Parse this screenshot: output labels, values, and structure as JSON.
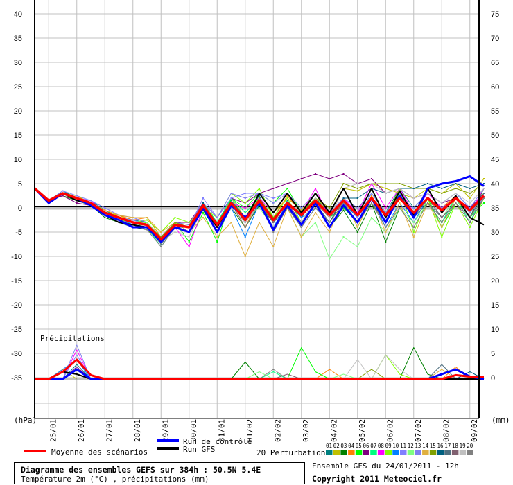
{
  "chart_data": {
    "type": "line",
    "title": "Diagramme des ensembles GEFS sur 384h : 50.5N 5.4E",
    "subtitle": "Température 2m (°C) , précipitations (mm)",
    "run_info": "Ensemble GFS du 24/01/2011 - 12h",
    "copyright": "Copyright 2011 Meteociel.fr",
    "left_unit": "(hPa)",
    "right_unit": "(mm)",
    "precip_label": "Précipitations",
    "time_step_hours": 12,
    "start": "24/01 12h",
    "x_tick_labels": [
      "25/01",
      "26/01",
      "27/01",
      "28/01",
      "29/01",
      "30/01",
      "31/01",
      "01/02",
      "02/02",
      "03/02",
      "04/02",
      "05/02",
      "06/02",
      "07/02",
      "08/02",
      "09/02"
    ],
    "y_left_ticks": [
      40,
      35,
      30,
      25,
      20,
      15,
      10,
      5,
      0,
      -5,
      -10,
      -15,
      -20,
      -25,
      -30,
      -35
    ],
    "y_right_ticks": [
      75,
      70,
      65,
      60,
      55,
      50,
      45,
      40,
      35,
      30,
      25,
      20,
      15,
      10,
      5,
      0
    ],
    "ylim": [
      -43,
      43
    ],
    "grid": true,
    "legend": {
      "mean": "Moyenne des scénarios",
      "control": "Run de contrôle",
      "gfs": "Run GFS",
      "perturbations": "20 Perturbations"
    },
    "colors": {
      "mean": "#ff0000",
      "control": "#0000ff",
      "gfs": "#000000"
    },
    "mean": {
      "temp": [
        4,
        1.5,
        3,
        2,
        1,
        -1,
        -2,
        -3,
        -3.5,
        -6.5,
        -3.5,
        -4,
        0.5,
        -3.5,
        1,
        -2.5,
        1.5,
        -2.5,
        1,
        -1.5,
        1.5,
        -1.5,
        1.5,
        -1.5,
        2,
        -1.5,
        2,
        -1,
        2,
        -0.5,
        2,
        -0.5,
        2.5
      ],
      "precip": {
        "2": 1.5,
        "3": 4,
        "4": 0.8,
        "30": 0.8,
        "31": 0.5,
        "32": 0.5
      }
    },
    "control": {
      "temp": [
        4,
        1,
        3,
        2,
        0.5,
        -1.5,
        -2.5,
        -4,
        -4,
        -7,
        -4,
        -5,
        0,
        -5,
        0.5,
        -2,
        1,
        -4.5,
        0.5,
        -3.5,
        1,
        -4,
        0.5,
        -3,
        2,
        -3,
        2.5,
        -2,
        4,
        5,
        5.5,
        6.5,
        4.5
      ],
      "precip": {
        "3": 2,
        "29": 1,
        "30": 2,
        "31": 0.5
      }
    },
    "gfs": {
      "temp": [
        null,
        1,
        3,
        1.5,
        1,
        -1.5,
        -3,
        -3.5,
        -4,
        -7,
        -4,
        -5,
        0,
        -4,
        1,
        -2.5,
        3,
        -1,
        3,
        -1,
        3,
        -1,
        4,
        -1.5,
        4,
        -2,
        3.5,
        -1.5,
        4,
        -1,
        2.5,
        -2,
        -3.5
      ],
      "precip": {
        "2": 1.5,
        "3": 1
      }
    },
    "perturbations": [
      {
        "id": "01",
        "color": "#008080",
        "temp": [
          4,
          1.5,
          3.5,
          2,
          1.5,
          -0.5,
          -2,
          -2.5,
          -3,
          -6,
          -3,
          -3.5,
          1,
          -3,
          1.5,
          -2,
          2.5,
          -3,
          1.5,
          -2,
          2,
          -1,
          1,
          -2,
          3,
          -1,
          4,
          0,
          3,
          1,
          3,
          0,
          3
        ],
        "precip": {
          "3": 3
        }
      },
      {
        "id": "02",
        "color": "#c0c000",
        "temp": [
          4,
          1.5,
          3,
          2.5,
          1,
          -1,
          -1.5,
          -3,
          -3,
          -6,
          -3,
          -4,
          1,
          -4,
          2,
          -2,
          3,
          -1,
          2,
          -0.5,
          3,
          -2,
          4,
          3.5,
          5,
          4,
          3,
          2,
          4,
          3,
          5,
          2,
          6
        ],
        "precip": {
          "2": 2
        }
      },
      {
        "id": "03",
        "color": "#008000",
        "temp": [
          4,
          1.5,
          2.5,
          1.5,
          0.5,
          -2,
          -3,
          -4,
          -4.5,
          -7,
          -4,
          -5,
          -0.5,
          -5,
          0,
          -4,
          0.5,
          -3,
          0,
          -3,
          1,
          -4,
          -0.5,
          -5,
          1,
          -7,
          0,
          -4,
          1,
          -3,
          2,
          -2,
          4
        ],
        "precip": {
          "15": 3.5,
          "27": 6.5,
          "28": 1
        }
      },
      {
        "id": "04",
        "color": "#ff8000",
        "temp": [
          4,
          1.5,
          3,
          2,
          1,
          -0.5,
          -1.5,
          -2.5,
          -2,
          -6,
          -3,
          -4,
          0,
          -3,
          1,
          -4,
          2,
          -2,
          2.5,
          -1,
          2,
          -2,
          1,
          -3,
          2.5,
          -2,
          3,
          -2,
          1,
          0,
          2.5,
          -1,
          2
        ],
        "precip": {
          "21": 2,
          "30": 2.5
        }
      },
      {
        "id": "05",
        "color": "#00ff00",
        "temp": [
          4,
          1,
          3,
          2,
          1,
          -1.5,
          -3,
          -4,
          -3,
          -6,
          -3,
          -7,
          -1,
          -7,
          2,
          0,
          3,
          1,
          4,
          -1,
          2,
          -2,
          0,
          -3,
          1,
          -3,
          3,
          -2,
          2,
          -4,
          1,
          -2,
          1
        ],
        "precip": {
          "19": 6.5,
          "20": 1.5
        }
      },
      {
        "id": "06",
        "color": "#800080",
        "temp": [
          4,
          1.5,
          2.5,
          1,
          0.5,
          -1,
          -2,
          -3,
          -3.5,
          -6,
          -3,
          -3,
          1,
          -2,
          2,
          1,
          3,
          4,
          5,
          6,
          7,
          6,
          7,
          5,
          6,
          3,
          4,
          2,
          3,
          1,
          2,
          0,
          3
        ],
        "precip": {
          "3": 2.5
        }
      },
      {
        "id": "07",
        "color": "#00ff80",
        "temp": [
          4,
          1.5,
          3,
          2,
          1,
          -1,
          -2.5,
          -3.5,
          -4,
          -8,
          -4,
          -4,
          1,
          -3,
          2,
          -1,
          2,
          -2,
          1,
          -1,
          2,
          -2,
          2,
          -2,
          3,
          -1,
          2,
          -2,
          1,
          -3,
          2,
          -3,
          3
        ],
        "precip": {
          "17": 1.5
        }
      },
      {
        "id": "08",
        "color": "#ff00ff",
        "temp": [
          4,
          1.5,
          3,
          2,
          1.5,
          -1,
          -2,
          -3,
          -3.5,
          -7,
          -4,
          -8,
          0,
          -4,
          1,
          0,
          2,
          -1,
          3,
          -1,
          4,
          -2,
          2,
          -1,
          5,
          0,
          4,
          -1,
          3,
          0,
          2,
          -1,
          4
        ],
        "precip": {
          "3": 6
        }
      },
      {
        "id": "09",
        "color": "#80ff00",
        "temp": [
          4,
          1.5,
          3,
          2,
          1,
          -1,
          -2.5,
          -3,
          -2.5,
          -5,
          -2,
          -3,
          0,
          -2,
          3,
          1,
          4,
          -2,
          2,
          -3,
          1,
          -3,
          2,
          -4,
          2,
          -2,
          4,
          -5,
          2,
          -6,
          1,
          -4,
          2
        ],
        "precip": {
          "25": 5,
          "26": 1
        }
      },
      {
        "id": "10",
        "color": "#0080ff",
        "temp": [
          4,
          1.5,
          3,
          2,
          1,
          -1,
          -2,
          -3.5,
          -4,
          -7,
          -4,
          -5,
          0,
          -5,
          0,
          -6,
          1,
          -4,
          1,
          -2,
          0,
          -3,
          1,
          -2,
          2,
          -4,
          1,
          -3,
          2,
          -2,
          1,
          -2,
          3
        ],
        "precip": {
          "2": 2,
          "3": 4
        }
      },
      {
        "id": "11",
        "color": "#8080ff",
        "temp": [
          4,
          1.5,
          3.5,
          2.5,
          1.5,
          0,
          -1.5,
          -2,
          -3,
          -6,
          -3,
          -4,
          2,
          -2,
          2,
          3,
          3,
          2,
          3,
          -1,
          3,
          -1,
          2,
          -2,
          3,
          -1,
          2,
          0,
          3,
          1,
          3,
          0,
          4
        ],
        "precip": {
          "3": 5
        }
      },
      {
        "id": "12",
        "color": "#80ff80",
        "temp": [
          4,
          1.5,
          3,
          2,
          1,
          -1,
          -2,
          -3,
          -3,
          -6,
          -3,
          -4,
          0,
          -3,
          1,
          -2,
          0,
          -4,
          0,
          -6,
          -3,
          -10.5,
          -6,
          -8,
          -2,
          -5,
          0,
          -3,
          1,
          -2,
          2,
          -1,
          3
        ],
        "precip": {
          "16": 1.5,
          "22": 1
        }
      },
      {
        "id": "13",
        "color": "#8080f0",
        "temp": [
          4,
          1.5,
          3,
          2,
          1,
          -1,
          -2,
          -2.5,
          -3.5,
          -6,
          -3,
          -3.5,
          1,
          -2,
          3,
          2,
          3,
          1,
          3,
          0,
          3,
          -1,
          2,
          0,
          3,
          -1,
          3,
          -1,
          2,
          0,
          2,
          -1,
          2
        ],
        "precip": {
          "3": 7
        }
      },
      {
        "id": "14",
        "color": "#e0b040",
        "temp": [
          4,
          1.5,
          3,
          2,
          1,
          -0.5,
          -1.5,
          -2,
          -2,
          -5,
          -3,
          -5,
          -2,
          -6,
          -3,
          -10,
          -3,
          -8,
          0,
          -6,
          -1,
          -5,
          2,
          -4,
          2,
          -5,
          1,
          -6,
          1,
          -4,
          2,
          -2,
          3
        ],
        "precip": {
          "29": 2
        }
      },
      {
        "id": "15",
        "color": "#80a000",
        "temp": [
          4,
          1.5,
          3,
          2,
          1,
          -1,
          -2,
          -3,
          -3.5,
          -6,
          -3,
          -4,
          0,
          -3,
          1,
          -2,
          2,
          -2,
          1,
          -1,
          2,
          0,
          5,
          4,
          5,
          5,
          5,
          4,
          4,
          3,
          4,
          3,
          5
        ],
        "precip": {
          "24": 2
        }
      },
      {
        "id": "16",
        "color": "#006080",
        "temp": [
          4,
          1.5,
          3,
          2,
          0.5,
          -1.5,
          -2.5,
          -3.5,
          -4,
          -7,
          -4,
          -4,
          1,
          -5,
          0,
          -3,
          1,
          -4,
          0,
          -4,
          0,
          -3,
          2,
          2,
          4,
          3,
          4,
          4,
          5,
          4,
          5,
          4,
          5
        ],
        "precip": {
          "31": 1.5
        }
      },
      {
        "id": "17",
        "color": "#507080",
        "temp": [
          4,
          1.5,
          3,
          1.5,
          0.5,
          -1.5,
          -3,
          -4,
          -4,
          -7.5,
          -4,
          -5,
          0,
          -4,
          0,
          -3,
          1,
          -3,
          0,
          -3,
          1,
          -3,
          1,
          -3,
          1,
          -3,
          2,
          -2,
          1,
          -2,
          1,
          -2,
          3
        ],
        "precip": {
          "29": 3
        }
      },
      {
        "id": "18",
        "color": "#806070",
        "temp": [
          4,
          1.5,
          3,
          2,
          1,
          -1,
          -2,
          -3,
          -3.5,
          -6.5,
          -4,
          -5,
          0,
          -4,
          1,
          -3,
          1,
          -3,
          1,
          -3,
          1,
          -2,
          1,
          -3,
          2,
          -2,
          2,
          -2,
          2,
          -2,
          1,
          -3,
          2
        ],
        "precip": {
          "18": 1
        }
      },
      {
        "id": "19",
        "color": "#c0c0c0",
        "temp": [
          4,
          1.5,
          3,
          2,
          1,
          -1,
          -2.5,
          -3.5,
          -4,
          -7,
          -5,
          -6,
          0,
          -5,
          0,
          -3,
          1,
          -4,
          0,
          -3,
          2,
          -2,
          4,
          5,
          5,
          3,
          4,
          2,
          3,
          1,
          3,
          1,
          4
        ],
        "precip": {
          "23": 4,
          "25": 5,
          "26": 2
        }
      },
      {
        "id": "20",
        "color": "#808080",
        "temp": [
          4,
          1.5,
          3,
          2,
          1,
          -1,
          -2.5,
          -3.5,
          -4.5,
          -8,
          -4,
          -5,
          0,
          -5,
          1,
          -4,
          1,
          -5,
          0,
          -4,
          0,
          -3,
          1,
          -3,
          1,
          -4,
          0,
          -4,
          1,
          -3,
          1,
          -2,
          2
        ],
        "precip": {
          "17": 2
        }
      }
    ]
  }
}
